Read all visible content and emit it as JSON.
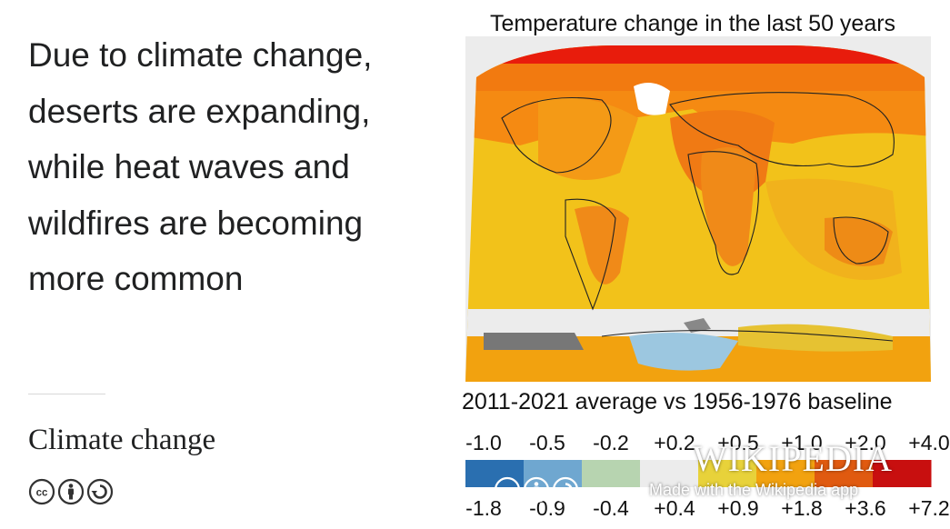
{
  "quote": {
    "lines": [
      "Due to climate change,",
      "deserts are expanding,",
      "while heat waves and",
      "wildfires are becoming",
      "more common"
    ]
  },
  "article": {
    "title": "Climate change"
  },
  "license": {
    "icons": [
      "cc-icon",
      "attribution-icon",
      "share-alike-icon"
    ]
  },
  "figure": {
    "title": "Temperature change in the last 50 years",
    "baseline": "2011-2021 average vs 1956-1976 baseline",
    "scale_top": [
      "-1.0",
      "-0.5",
      "-0.2",
      "+0.2",
      "+0.5",
      "+1.0",
      "+2.0",
      "+4.0"
    ],
    "scale_bottom": [
      "-1.8",
      "-0.9",
      "-0.4",
      "+0.4",
      "+0.9",
      "+1.8",
      "+3.6",
      "+7.2"
    ],
    "scale_colors": [
      "#2a6fb0",
      "#6fa7d0",
      "#b7d4b0",
      "#ececec",
      "#e8d23a",
      "#f2a20f",
      "#e05a10",
      "#c80f0f"
    ]
  },
  "watermark": {
    "logo": "WIKIPEDIA",
    "made_with": "Made with the Wikipedia app"
  }
}
